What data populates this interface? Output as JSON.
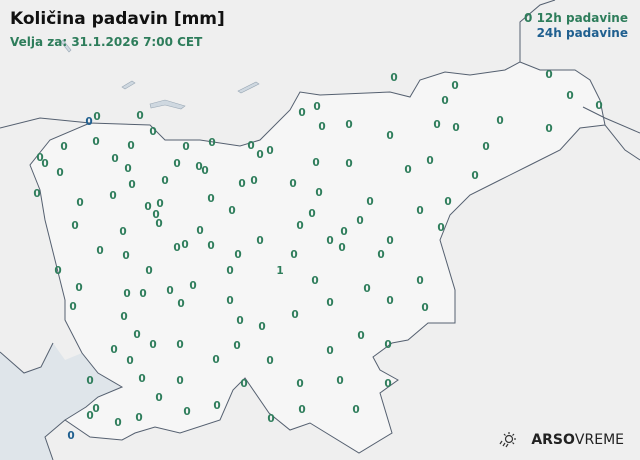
{
  "title": "Količina padavin [mm]",
  "valid_for": "Velja za: 31.1.2026 7:00 CET",
  "legend": {
    "sample_value": "0",
    "label_12h": "12h padavine",
    "label_24h": "24h padavine",
    "color_12h": "#2e7d5b",
    "color_24h": "#1f5f8f"
  },
  "logo": {
    "brand": "ARSO",
    "product": "VREME",
    "icon": "sun-rain-icon"
  },
  "stations_12h": [
    "0",
    "0",
    "0",
    "0",
    "0",
    "0",
    "0",
    "0",
    "0",
    "0",
    "0",
    "0",
    "0",
    "0",
    "0",
    "0",
    "0",
    "0",
    "0",
    "0",
    "0",
    "0",
    "0",
    "0",
    "0",
    "0",
    "0",
    "0",
    "0",
    "0",
    "0",
    "0",
    "0",
    "0",
    "0",
    "0",
    "0",
    "0",
    "0",
    "0",
    "0",
    "0",
    "0",
    "0",
    "0",
    "0",
    "0",
    "0",
    "0",
    "0",
    "0",
    "0",
    "0",
    "0",
    "0",
    "0",
    "0",
    "0",
    "0",
    "0",
    "0",
    "0",
    "0",
    "0",
    "0",
    "0",
    "0",
    "0",
    "0",
    "0",
    "0",
    "0",
    "0",
    "0",
    "0",
    "0",
    "0",
    "0",
    "0",
    "0",
    "0",
    "0",
    "0",
    "0",
    "0",
    "0",
    "0",
    "0",
    "0",
    "0",
    "0",
    "0",
    "0",
    "0",
    "0",
    "0",
    "0",
    "0",
    "0",
    "0",
    "0",
    "0",
    "0",
    "0",
    "0",
    "0",
    "0",
    "1",
    "0",
    "0",
    "0",
    "0",
    "0",
    "0",
    "0",
    "0",
    "0",
    "0",
    "0",
    "0",
    "0",
    "0",
    "0",
    "0",
    "0",
    "0",
    "0",
    "0",
    "0"
  ],
  "stations_24h": [
    "0",
    "0"
  ]
}
